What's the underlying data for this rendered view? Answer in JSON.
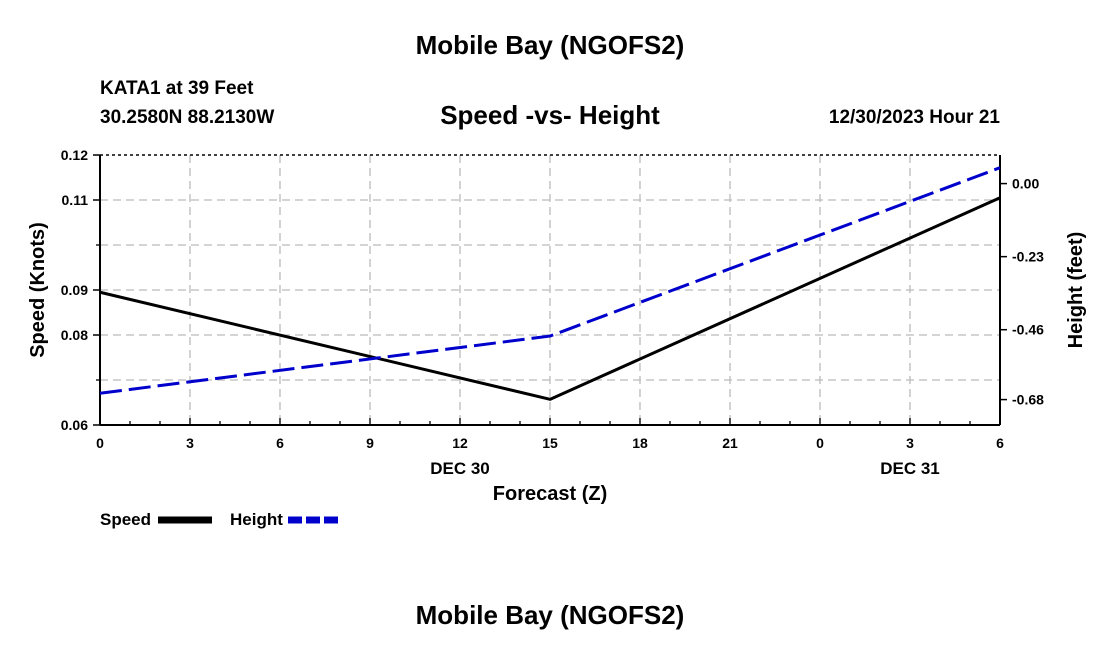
{
  "header": {
    "title": "Mobile Bay (NGOFS2)",
    "station": "KATA1 at 39 Feet",
    "coords": "30.2580N  88.2130W",
    "subtitle": "Speed -vs- Height",
    "datetime": "12/30/2023 Hour 21"
  },
  "footer": {
    "title": "Mobile Bay (NGOFS2)"
  },
  "legend": {
    "items": [
      {
        "label": "Speed",
        "color": "#000000",
        "style": "solid"
      },
      {
        "label": "Height",
        "color": "#0000cc",
        "style": "dashed"
      }
    ]
  },
  "chart_data": {
    "type": "line",
    "xlabel": "Forecast (Z)",
    "ylabel_left": "Speed (Knots)",
    "ylabel_right": "Height (feet)",
    "x_ticks": [
      "0",
      "3",
      "6",
      "9",
      "12",
      "15",
      "18",
      "21",
      "0",
      "3",
      "6"
    ],
    "date_labels": [
      {
        "label": "DEC 30",
        "at_tick": 4
      },
      {
        "label": "DEC 31",
        "at_tick": 9
      }
    ],
    "x_range_hours": [
      0,
      30
    ],
    "left_axis": {
      "range": [
        0.06,
        0.12
      ],
      "ticks": [
        "0.06",
        "0.08",
        "0.09",
        "0.11",
        "0.12"
      ],
      "tick_values": [
        0.06,
        0.08,
        0.09,
        0.11,
        0.12
      ]
    },
    "right_axis": {
      "range": [
        -0.76,
        0.09
      ],
      "ticks": [
        "-0.68",
        "-0.46",
        "-0.23",
        "0.00"
      ],
      "tick_values": [
        -0.68,
        -0.46,
        -0.23,
        0.0
      ]
    },
    "grid": true,
    "series": [
      {
        "name": "Speed",
        "axis": "left",
        "color": "#000000",
        "dash": "solid",
        "x": [
          0,
          15,
          30
        ],
        "y": [
          0.0895,
          0.0657,
          0.1105
        ]
      },
      {
        "name": "Height",
        "axis": "right",
        "color": "#0000cc",
        "dash": "dashed",
        "x": [
          0,
          15,
          30
        ],
        "y": [
          -0.66,
          -0.48,
          0.05
        ]
      }
    ]
  }
}
